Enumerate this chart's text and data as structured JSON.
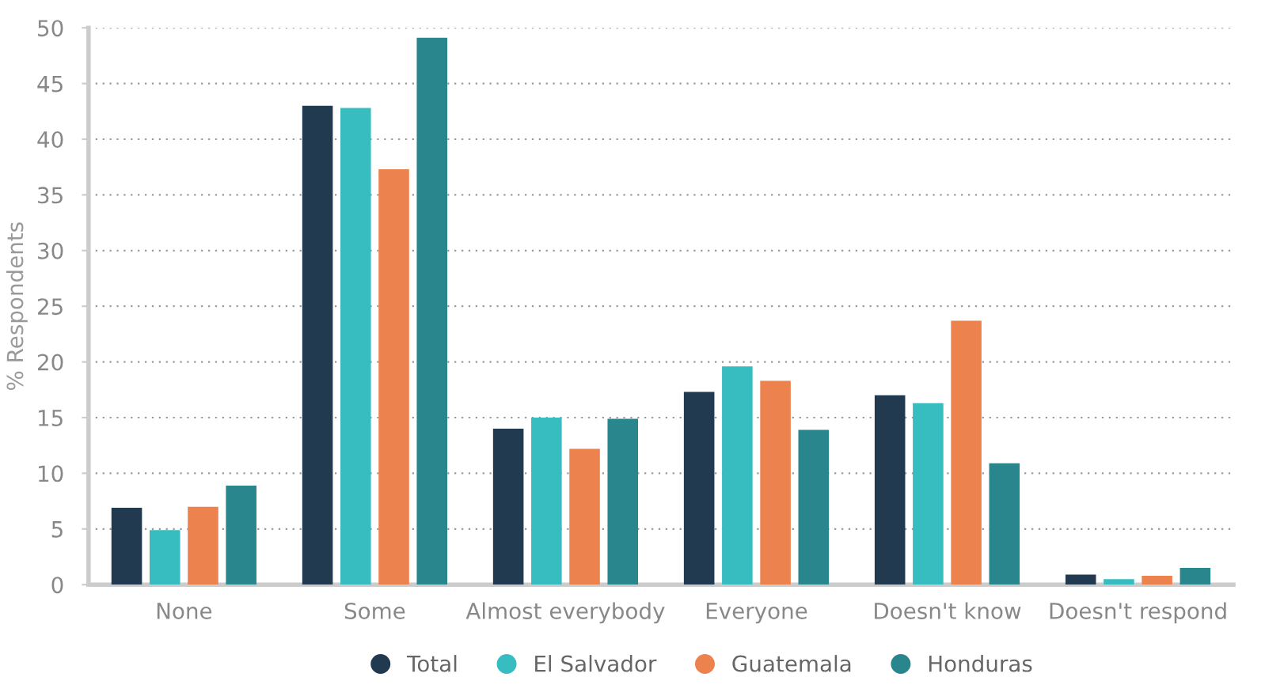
{
  "chart_data": {
    "type": "bar",
    "ylabel": "% Respondents",
    "categories": [
      "None",
      "Some",
      "Almost everybody",
      "Everyone",
      "Doesn't know",
      "Doesn't respond"
    ],
    "series": [
      {
        "name": "Total",
        "color": "#223a50",
        "values": [
          6.9,
          43.0,
          14.0,
          17.3,
          17.0,
          0.9
        ]
      },
      {
        "name": "El Salvador",
        "color": "#37bdbf",
        "values": [
          4.9,
          42.8,
          15.0,
          19.6,
          16.3,
          0.5
        ]
      },
      {
        "name": "Guatemala",
        "color": "#ec834f",
        "values": [
          7.0,
          37.3,
          12.2,
          18.3,
          23.7,
          0.8
        ]
      },
      {
        "name": "Honduras",
        "color": "#28868c",
        "values": [
          8.9,
          49.1,
          14.9,
          13.9,
          10.9,
          1.5
        ]
      }
    ],
    "ylim": [
      0,
      50
    ],
    "yticks": [
      0,
      5,
      10,
      15,
      20,
      25,
      30,
      35,
      40,
      45,
      50
    ],
    "grid": "y",
    "legend": "bottom"
  }
}
